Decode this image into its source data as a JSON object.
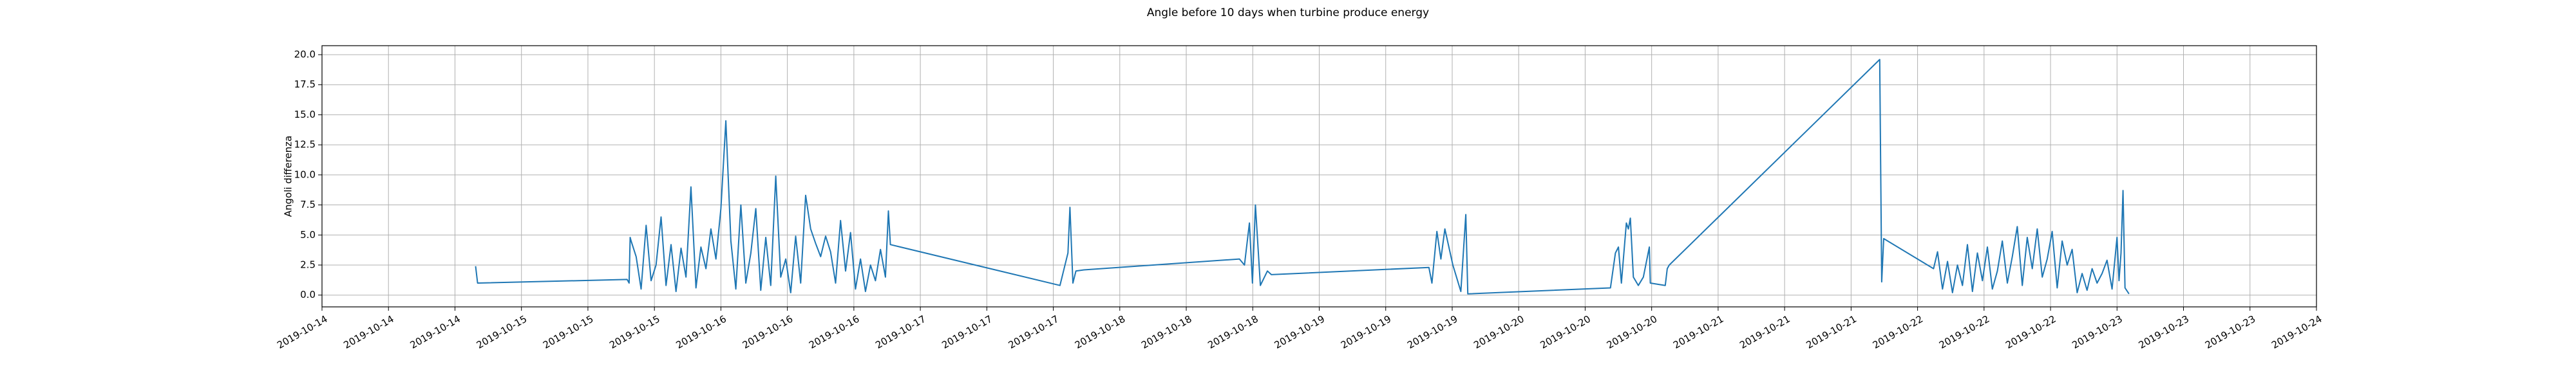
{
  "chart_data": {
    "type": "line",
    "title": "Angle before 10 days when turbine produce energy",
    "ylabel": "Angoli differenza",
    "grid": true,
    "xlim": [
      0,
      10
    ],
    "ylim": [
      -0.98,
      20.75
    ],
    "xticks": [
      {
        "value": 0,
        "label": "2019-10-14"
      },
      {
        "value": 0.3333,
        "label": "2019-10-14"
      },
      {
        "value": 0.6667,
        "label": "2019-10-14"
      },
      {
        "value": 1,
        "label": "2019-10-15"
      },
      {
        "value": 1.3333,
        "label": "2019-10-15"
      },
      {
        "value": 1.6667,
        "label": "2019-10-15"
      },
      {
        "value": 2,
        "label": "2019-10-16"
      },
      {
        "value": 2.3333,
        "label": "2019-10-16"
      },
      {
        "value": 2.6667,
        "label": "2019-10-16"
      },
      {
        "value": 3,
        "label": "2019-10-17"
      },
      {
        "value": 3.3333,
        "label": "2019-10-17"
      },
      {
        "value": 3.6667,
        "label": "2019-10-17"
      },
      {
        "value": 4,
        "label": "2019-10-18"
      },
      {
        "value": 4.3333,
        "label": "2019-10-18"
      },
      {
        "value": 4.6667,
        "label": "2019-10-18"
      },
      {
        "value": 5,
        "label": "2019-10-19"
      },
      {
        "value": 5.3333,
        "label": "2019-10-19"
      },
      {
        "value": 5.6667,
        "label": "2019-10-19"
      },
      {
        "value": 6,
        "label": "2019-10-20"
      },
      {
        "value": 6.3333,
        "label": "2019-10-20"
      },
      {
        "value": 6.6667,
        "label": "2019-10-20"
      },
      {
        "value": 7,
        "label": "2019-10-21"
      },
      {
        "value": 7.3333,
        "label": "2019-10-21"
      },
      {
        "value": 7.6667,
        "label": "2019-10-21"
      },
      {
        "value": 8,
        "label": "2019-10-22"
      },
      {
        "value": 8.3333,
        "label": "2019-10-22"
      },
      {
        "value": 8.6667,
        "label": "2019-10-22"
      },
      {
        "value": 9,
        "label": "2019-10-23"
      },
      {
        "value": 9.3333,
        "label": "2019-10-23"
      },
      {
        "value": 9.6667,
        "label": "2019-10-23"
      },
      {
        "value": 10,
        "label": "2019-10-24"
      }
    ],
    "yticks": [
      {
        "value": 0,
        "label": "0.0"
      },
      2.5,
      {
        "value": 5,
        "label": "5.0"
      },
      7.5,
      {
        "value": 10,
        "label": "10.0"
      },
      12.5,
      {
        "value": 15,
        "label": "15.0"
      },
      17.5,
      {
        "value": 20,
        "label": "20.0"
      }
    ],
    "x": [
      0.77,
      0.78,
      1.53,
      1.54,
      1.545,
      1.55,
      1.575,
      1.6,
      1.625,
      1.65,
      1.675,
      1.7,
      1.725,
      1.75,
      1.775,
      1.8,
      1.825,
      1.85,
      1.875,
      1.9,
      1.925,
      1.95,
      1.975,
      2.0,
      2.025,
      2.05,
      2.075,
      2.1,
      2.125,
      2.15,
      2.175,
      2.2,
      2.225,
      2.25,
      2.275,
      2.3,
      2.325,
      2.35,
      2.375,
      2.4,
      2.425,
      2.45,
      2.475,
      2.5,
      2.525,
      2.55,
      2.575,
      2.6,
      2.625,
      2.65,
      2.675,
      2.7,
      2.725,
      2.75,
      2.775,
      2.8,
      2.825,
      2.84,
      2.85,
      3.7,
      3.74,
      3.75,
      3.765,
      3.78,
      3.82,
      4.6,
      4.625,
      4.65,
      4.665,
      4.68,
      4.705,
      4.74,
      4.76,
      5.55,
      5.565,
      5.59,
      5.61,
      5.63,
      5.67,
      5.71,
      5.735,
      5.745,
      6.46,
      6.485,
      6.5,
      6.515,
      6.54,
      6.55,
      6.56,
      6.575,
      6.6,
      6.625,
      6.655,
      6.66,
      6.735,
      6.745,
      6.755,
      7.81,
      7.82,
      7.83,
      8.08,
      8.1,
      8.125,
      8.15,
      8.175,
      8.2,
      8.225,
      8.25,
      8.275,
      8.3,
      8.325,
      8.35,
      8.375,
      8.4,
      8.425,
      8.45,
      8.475,
      8.5,
      8.525,
      8.55,
      8.575,
      8.6,
      8.625,
      8.65,
      8.675,
      8.7,
      8.725,
      8.75,
      8.775,
      8.8,
      8.825,
      8.85,
      8.875,
      8.9,
      8.925,
      8.95,
      8.975,
      9.0,
      9.01,
      9.02,
      9.03,
      9.04,
      9.06
    ],
    "series": [
      {
        "color": "#1f77b4",
        "values": [
          2.4,
          1.0,
          1.3,
          1.0,
          4.8,
          4.5,
          3.2,
          0.5,
          5.8,
          1.2,
          2.5,
          6.5,
          0.8,
          4.2,
          0.3,
          3.9,
          1.5,
          9.0,
          0.6,
          4.0,
          2.2,
          5.5,
          3.0,
          7.2,
          14.5,
          4.5,
          0.5,
          7.5,
          1.0,
          3.5,
          7.2,
          0.4,
          4.8,
          0.8,
          9.9,
          1.5,
          3.0,
          0.2,
          4.9,
          1.0,
          8.3,
          5.5,
          4.3,
          3.2,
          4.9,
          3.6,
          1.0,
          6.2,
          2.0,
          5.2,
          0.5,
          3.0,
          0.3,
          2.5,
          1.2,
          3.8,
          1.5,
          7.0,
          4.2,
          0.8,
          3.5,
          7.3,
          1.0,
          2.0,
          2.1,
          3.0,
          2.5,
          6.0,
          1.0,
          7.5,
          0.8,
          2.0,
          1.7,
          2.3,
          1.0,
          5.3,
          3.0,
          5.5,
          2.5,
          0.3,
          6.7,
          0.1,
          0.6,
          3.5,
          4.0,
          1.0,
          6.0,
          5.5,
          6.4,
          1.5,
          0.8,
          1.5,
          4.0,
          1.0,
          0.8,
          2.2,
          2.5,
          19.6,
          1.1,
          4.7,
          2.2,
          3.6,
          0.5,
          2.8,
          0.2,
          2.5,
          0.8,
          4.2,
          0.3,
          3.5,
          1.2,
          4.0,
          0.5,
          2.0,
          4.5,
          1.0,
          3.2,
          5.7,
          0.8,
          4.8,
          2.2,
          5.5,
          1.5,
          3.0,
          5.3,
          0.6,
          4.5,
          2.5,
          3.8,
          0.2,
          1.8,
          0.4,
          2.2,
          1.0,
          1.8,
          2.9,
          0.5,
          4.8,
          1.2,
          3.5,
          8.7,
          0.6,
          0.1
        ]
      }
    ]
  }
}
